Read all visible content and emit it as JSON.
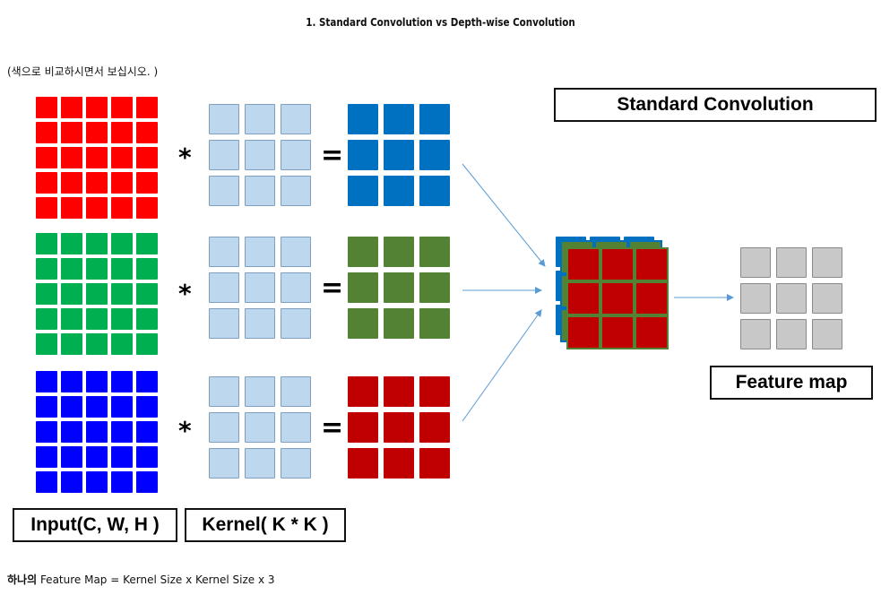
{
  "title": "1. Standard Convolution vs Depth-wise Convolution",
  "note": "(색으로 비교하시면서 보십시오. )",
  "operators": {
    "multiply": "*",
    "equals": "="
  },
  "rows": [
    {
      "input_color": "#ff0000",
      "output_color": "#0070c0"
    },
    {
      "input_color": "#00b050",
      "output_color": "#548235"
    },
    {
      "input_color": "#0000ff",
      "output_color": "#c00000"
    }
  ],
  "kernel_color": "#bdd7ee",
  "kernel_border": "#7f9fbf",
  "feature_map_color": "#c8c8c8",
  "arrow_color": "#5b9bd5",
  "labels": {
    "standard_convolution": "Standard Convolution",
    "feature_map": "Feature map",
    "input": "Input(C, W, H )",
    "kernel": "Kernel( K * K )"
  },
  "formula": {
    "korean": "하나의",
    "rest": " Feature Map = Kernel Size x Kernel Size x 3"
  }
}
